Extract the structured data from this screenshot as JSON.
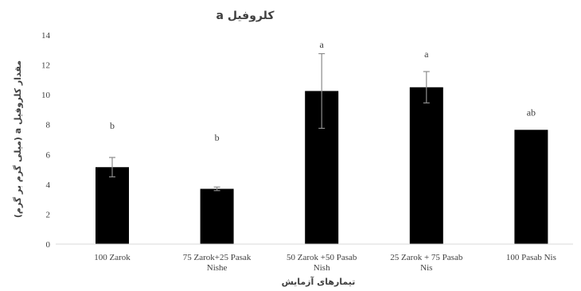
{
  "chart_data": {
    "type": "bar",
    "title": "کلروفیل a",
    "xlabel": "تیمارهای آزمایش",
    "ylabel": "مقدار کلروفیل a (میلی گرم بر گرم)",
    "ylim": [
      0,
      14
    ],
    "yticks": [
      "0",
      "2",
      "4",
      "6",
      "8",
      "10",
      "12",
      "14"
    ],
    "grid": false,
    "legend": "none",
    "bar_color": "#000000",
    "categories": [
      [
        "100 Zarok"
      ],
      [
        "75 Zarok+25 Pasak",
        "Nishe"
      ],
      [
        "50 Zarok +50 Pasab",
        "Nish"
      ],
      [
        "25 Zarok + 75 Pasab",
        "Nis"
      ],
      [
        "100  Pasab Nis"
      ]
    ],
    "values": [
      5.15,
      3.7,
      10.25,
      10.5,
      7.65
    ],
    "errors": [
      0.65,
      0.12,
      2.5,
      1.05,
      0
    ],
    "significance": [
      "b",
      "b",
      "a",
      "a",
      "ab"
    ]
  }
}
